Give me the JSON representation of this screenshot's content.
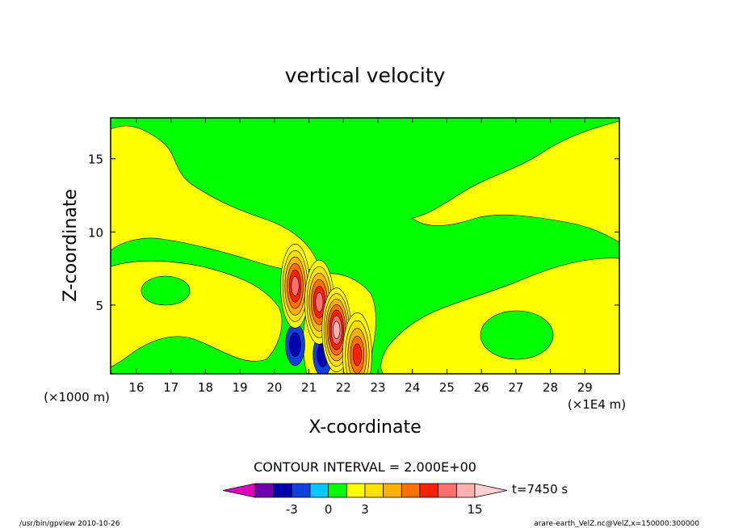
{
  "chart_data": {
    "type": "heatmap",
    "title": "vertical velocity",
    "xlabel": "X-coordinate",
    "ylabel": "Z-coordinate",
    "x_unit": "(×1E4 m)",
    "y_unit": "(×1000 m)",
    "xlim": [
      15.25,
      30.0
    ],
    "ylim": [
      0.3,
      17.8
    ],
    "x_ticks": [
      16,
      17,
      18,
      19,
      20,
      21,
      22,
      23,
      24,
      25,
      26,
      27,
      28,
      29
    ],
    "y_ticks": [
      5,
      10,
      15
    ],
    "contour_interval": "CONTOUR INTERVAL = 2.000E+00",
    "time_label": "t=7450 s",
    "colorbar": {
      "levels": [
        -9,
        -7,
        -5,
        -3,
        -1,
        0,
        1,
        3,
        5,
        7,
        9,
        11,
        13,
        15,
        17
      ],
      "colors": [
        "#e000c0",
        "#7000b0",
        "#0000b0",
        "#1040e0",
        "#00c8ff",
        "#00ff00",
        "#ffff00",
        "#ffe000",
        "#ffb000",
        "#ff7000",
        "#ff2000",
        "#ff7070",
        "#ffb0b0",
        "#ffd0d0"
      ],
      "tick_labels": [
        {
          "value": -3,
          "label": "-3"
        },
        {
          "value": 0,
          "label": "0"
        },
        {
          "value": 3,
          "label": "3"
        },
        {
          "value": 15,
          "label": "15"
        }
      ]
    },
    "features": [
      {
        "kind": "downdraft",
        "x": 20.6,
        "z": 2.3,
        "value": -3
      },
      {
        "kind": "downdraft",
        "x": 21.4,
        "z": 1.6,
        "value": -3
      },
      {
        "kind": "updraft",
        "x": 20.6,
        "z": 6.3,
        "value": 11
      },
      {
        "kind": "updraft",
        "x": 21.3,
        "z": 5.2,
        "value": 11
      },
      {
        "kind": "updraft",
        "x": 21.8,
        "z": 3.3,
        "value": 13
      },
      {
        "kind": "updraft",
        "x": 22.4,
        "z": 1.6,
        "value": 9
      }
    ],
    "grid": false,
    "legend": "bottom"
  },
  "footer": {
    "left": "/usr/bin/gpview   2010-10-26",
    "right": "arare-earth_VelZ.nc@VelZ,x=150000:300000"
  }
}
